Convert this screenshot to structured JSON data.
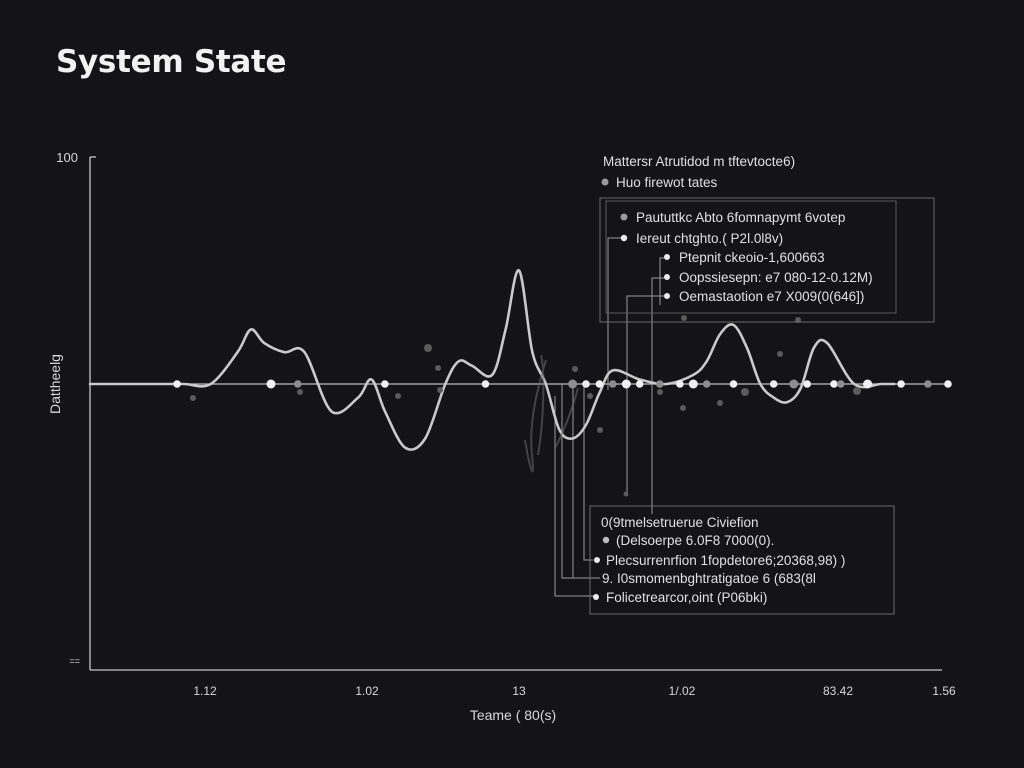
{
  "title": "System State",
  "chart_data": {
    "type": "line",
    "title": "System State",
    "xlabel": "Teame ( 80(s)",
    "ylabel": "Dattheelg",
    "y_tick_labels": [
      "100",
      "=="
    ],
    "x_tick_labels": [
      "1.12",
      "1.02",
      "13",
      "1/.02",
      "83.42",
      "1.56"
    ],
    "ylim": [
      0,
      100
    ],
    "baseline": 50,
    "grid": false,
    "series": [
      {
        "x": [
          0,
          5,
          10,
          14,
          18,
          22,
          24,
          26,
          29,
          32,
          36,
          40,
          42,
          44,
          47,
          50,
          53,
          55,
          57,
          60,
          62,
          64,
          66,
          68,
          70,
          72,
          74,
          76,
          78,
          82,
          86,
          90,
          92,
          94,
          96,
          98,
          100,
          102,
          104,
          106,
          108,
          110,
          114,
          118,
          120
        ],
        "y": [
          50,
          50,
          50,
          50,
          50,
          57,
          62,
          59,
          57,
          57,
          44,
          47,
          51,
          44,
          36,
          38,
          50,
          55,
          54,
          52,
          62,
          75,
          57,
          50,
          40,
          38,
          41,
          48,
          53,
          51,
          50,
          52,
          55,
          61,
          63,
          58,
          50,
          47,
          46,
          49,
          58,
          59,
          50,
          50,
          50
        ]
      }
    ],
    "points_x": [
      13,
      27,
      31,
      44,
      59,
      72,
      74,
      76,
      78,
      80,
      82,
      85,
      88,
      90,
      92,
      96,
      102,
      105,
      107,
      111,
      112,
      116,
      121,
      125,
      128
    ],
    "annotation_top": {
      "heading": "Mattersr Atrutidod m tftevtocte6)",
      "sub": "Huo firewot tates"
    },
    "annotation_box1": [
      "Paututtkc Abto 6fomnapymt 6votep",
      "Iereut chtghto.( P2l.0l8v)",
      "Ptepnit ckeoio-1,600663",
      "Oopssiesepn: e7 080-12-0.12M)",
      "Oemastaotion e7 X009(0(646])"
    ],
    "annotation_box2": [
      "0(9tmelsetruerue Civiefion",
      "(Delsoerpe 6.0F8 7000(0).",
      "Plecsurrenrfion 1fopdetore6;20368,98) )",
      "9. I0smomenbghtratigatoe 6 (683(8l",
      "Folicetrearcor,oint (P06bki)"
    ]
  }
}
